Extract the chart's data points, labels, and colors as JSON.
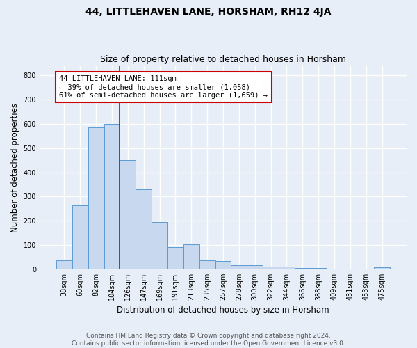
{
  "title": "44, LITTLEHAVEN LANE, HORSHAM, RH12 4JA",
  "subtitle": "Size of property relative to detached houses in Horsham",
  "xlabel": "Distribution of detached houses by size in Horsham",
  "ylabel": "Number of detached properties",
  "categories": [
    "38sqm",
    "60sqm",
    "82sqm",
    "104sqm",
    "126sqm",
    "147sqm",
    "169sqm",
    "191sqm",
    "213sqm",
    "235sqm",
    "257sqm",
    "278sqm",
    "300sqm",
    "322sqm",
    "344sqm",
    "366sqm",
    "388sqm",
    "409sqm",
    "431sqm",
    "453sqm",
    "475sqm"
  ],
  "values": [
    38,
    265,
    585,
    600,
    450,
    330,
    195,
    91,
    103,
    37,
    33,
    17,
    17,
    10,
    10,
    6,
    6,
    0,
    0,
    0,
    8
  ],
  "bar_color": "#c8d9ef",
  "bar_edge_color": "#5b9bd5",
  "annotation_text_line1": "44 LITTLEHAVEN LANE: 111sqm",
  "annotation_text_line2": "← 39% of detached houses are smaller (1,058)",
  "annotation_text_line3": "61% of semi-detached houses are larger (1,659) →",
  "annotation_box_color": "#ffffff",
  "annotation_box_edge": "#cc0000",
  "vline_color": "#cc0000",
  "vline_x": 3.5,
  "ylim": [
    0,
    840
  ],
  "yticks": [
    0,
    100,
    200,
    300,
    400,
    500,
    600,
    700,
    800
  ],
  "footnote_line1": "Contains HM Land Registry data © Crown copyright and database right 2024.",
  "footnote_line2": "Contains public sector information licensed under the Open Government Licence v3.0.",
  "fig_bg_color": "#e8eef7",
  "plot_bg_color": "#e8eef7",
  "grid_color": "#ffffff",
  "title_fontsize": 10,
  "subtitle_fontsize": 9,
  "label_fontsize": 8.5,
  "tick_fontsize": 7,
  "annotation_fontsize": 7.5,
  "footnote_fontsize": 6.5
}
